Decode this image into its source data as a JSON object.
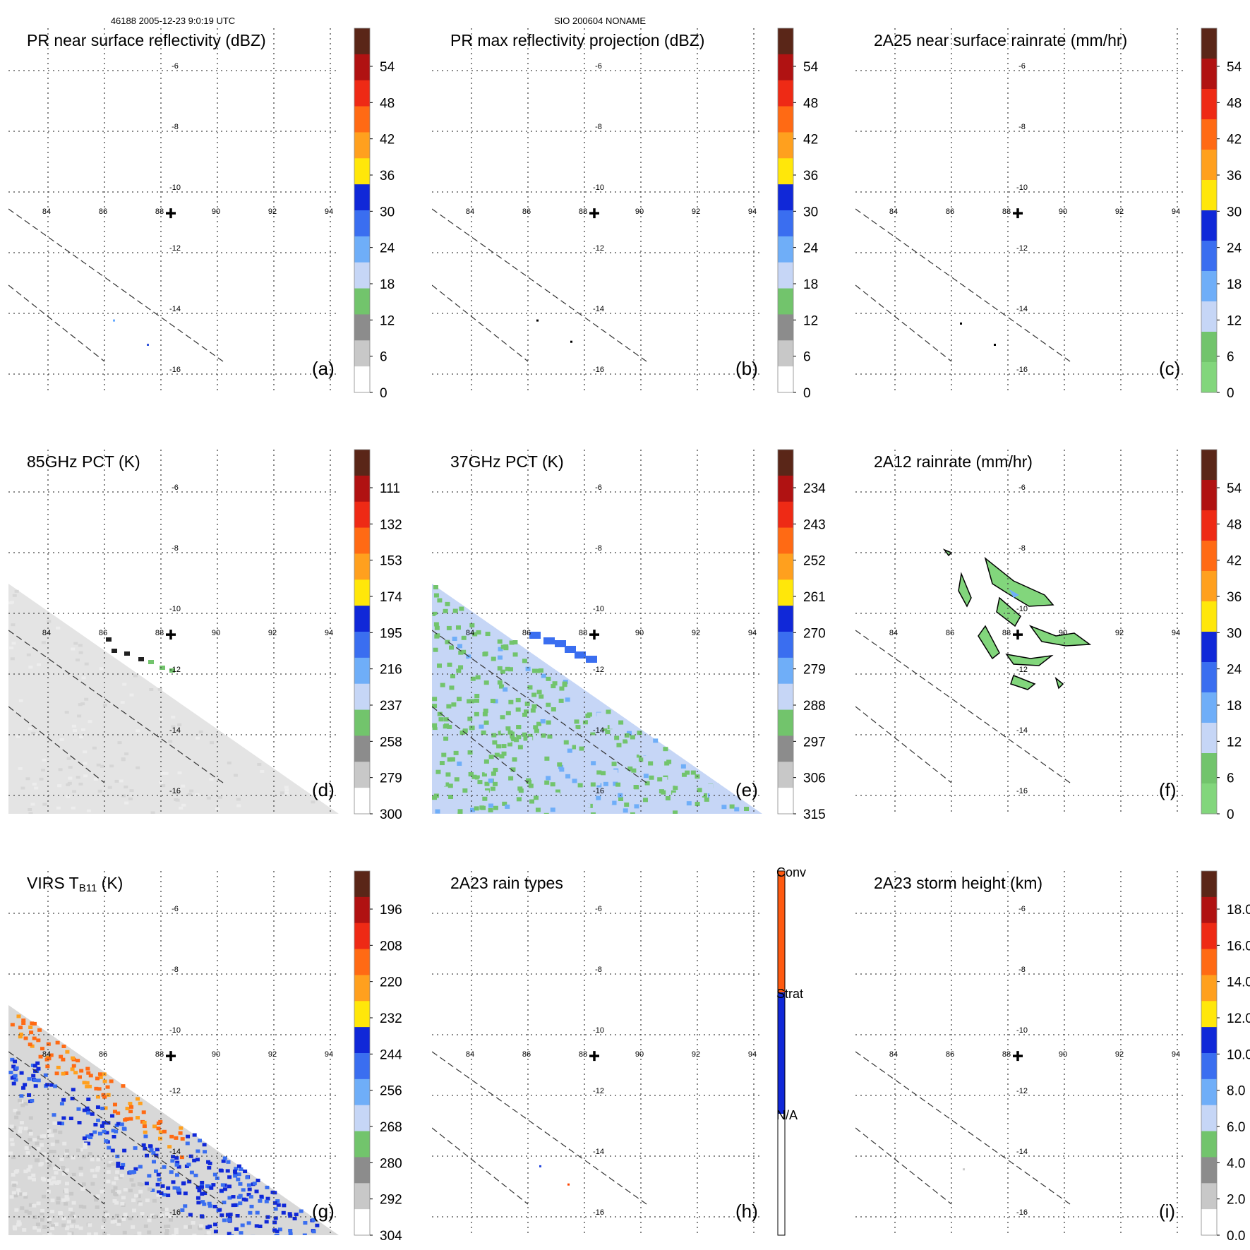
{
  "header": {
    "left": "46188 2005-12-23 9:0:19 UTC",
    "center": "SIO 200604 NONAME"
  },
  "map": {
    "lon_ticks": [
      "84",
      "86",
      "88",
      "90",
      "92",
      "94"
    ],
    "lat_ticks": [
      "-6",
      "-8",
      "-10",
      "-12",
      "-14",
      "-16"
    ],
    "center_marker": "cross"
  },
  "panels": [
    {
      "title": "PR near surface reflectivity (dBZ)",
      "letter": "(a)",
      "colorbar": {
        "labels": [
          "54",
          "48",
          "42",
          "36",
          "30",
          "24",
          "18",
          "12",
          "6",
          "0"
        ],
        "scheme": "standard"
      },
      "content": "swath-edges",
      "pixels": [
        {
          "lon": 86.3,
          "lat": -14.2,
          "color": "#66aaff"
        },
        {
          "lon": 87.5,
          "lat": -15.0,
          "color": "#3355dd"
        }
      ]
    },
    {
      "title": "PR max reflectivity projection (dBZ)",
      "letter": "(b)",
      "colorbar": {
        "labels": [
          "54",
          "48",
          "42",
          "36",
          "30",
          "24",
          "18",
          "12",
          "6",
          "0"
        ],
        "scheme": "standard"
      },
      "content": "swath-edges",
      "pixels": [
        {
          "lon": 86.3,
          "lat": -14.2,
          "color": "#000000"
        },
        {
          "lon": 87.5,
          "lat": -14.9,
          "color": "#000000"
        }
      ]
    },
    {
      "title": "2A25 near surface rainrate (mm/hr)",
      "letter": "(c)",
      "colorbar": {
        "labels": [
          "54",
          "48",
          "42",
          "36",
          "30",
          "24",
          "18",
          "12",
          "6",
          "0"
        ],
        "scheme": "rain"
      },
      "content": "swath-edges",
      "pixels": [
        {
          "lon": 86.3,
          "lat": -14.3,
          "color": "#000000"
        },
        {
          "lon": 87.5,
          "lat": -15.0,
          "color": "#000000"
        }
      ]
    },
    {
      "title": "85GHz PCT (K)",
      "letter": "(d)",
      "colorbar": {
        "labels": [
          "111",
          "132",
          "153",
          "174",
          "195",
          "216",
          "237",
          "258",
          "279",
          "300"
        ],
        "scheme": "standard"
      },
      "content": "grey-swath"
    },
    {
      "title": "37GHz PCT (K)",
      "letter": "(e)",
      "colorbar": {
        "labels": [
          "234",
          "243",
          "252",
          "261",
          "270",
          "279",
          "288",
          "297",
          "306",
          "315"
        ],
        "scheme": "standard"
      },
      "content": "green-blue-swath"
    },
    {
      "title": "2A12 rainrate (mm/hr)",
      "letter": "(f)",
      "colorbar": {
        "labels": [
          "54",
          "48",
          "42",
          "36",
          "30",
          "24",
          "18",
          "12",
          "6",
          "0"
        ],
        "scheme": "rain"
      },
      "content": "rain-blobs"
    },
    {
      "title": "VIRS T",
      "title_sub": "B11",
      "title_after": " (K)",
      "letter": "(g)",
      "colorbar": {
        "labels": [
          "196",
          "208",
          "220",
          "232",
          "244",
          "256",
          "268",
          "280",
          "292",
          "304"
        ],
        "scheme": "standard"
      },
      "content": "ir-swath"
    },
    {
      "title": "2A23 rain types",
      "letter": "(h)",
      "colorbar": {
        "labels": [
          "Conv",
          "Strat",
          "N/A"
        ],
        "scheme": "types"
      },
      "content": "swath-edges",
      "pixels": [
        {
          "lon": 86.4,
          "lat": -14.3,
          "color": "#2244dd"
        },
        {
          "lon": 87.4,
          "lat": -14.9,
          "color": "#ff4400"
        }
      ]
    },
    {
      "title": "2A23 storm height (km)",
      "letter": "(i)",
      "colorbar": {
        "labels": [
          "18.0",
          "16.0",
          "14.0",
          "12.0",
          "10.0",
          "8.0",
          "6.0",
          "4.0",
          "2.0",
          "0.0"
        ],
        "scheme": "standard"
      },
      "content": "swath-edges",
      "pixels": [
        {
          "lon": 86.4,
          "lat": -14.4,
          "color": "#cccccc"
        }
      ]
    }
  ]
}
